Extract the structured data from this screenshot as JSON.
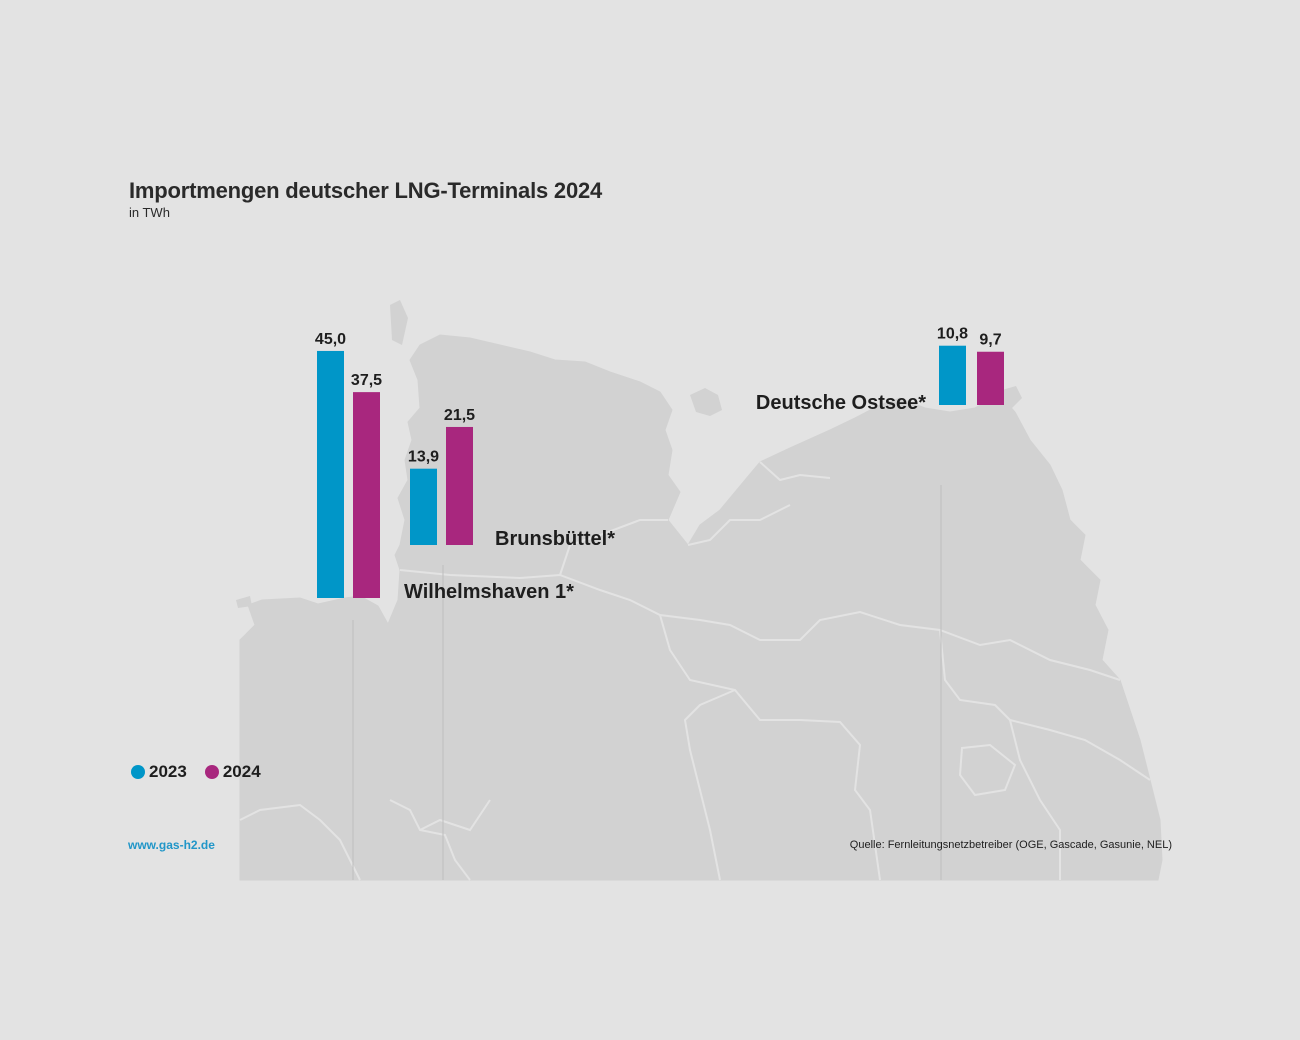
{
  "header": {
    "title": "Importmengen deutscher LNG-Terminals 2024",
    "subtitle": "in TWh"
  },
  "legend": {
    "items": [
      {
        "label": "2023",
        "color": "#0096c8"
      },
      {
        "label": "2024",
        "color": "#a8277e"
      }
    ]
  },
  "footer": {
    "url": "www.gas-h2.de",
    "source": "Quelle: Fernleitungsnetzbetreiber (OGE, Gascade, Gasunie, NEL)"
  },
  "colors": {
    "background": "#e3e3e3",
    "map_land": "#d2d2d2",
    "map_border": "#e3e3e3",
    "series_2023": "#0096c8",
    "series_2024": "#a8277e"
  },
  "chart_data": {
    "type": "bar",
    "title": "Importmengen deutscher LNG-Terminals 2024",
    "subtitle": "in TWh",
    "unit": "TWh",
    "categories": [
      "Wilhelmshaven 1*",
      "Brunsbüttel*",
      "Deutsche Ostsee*"
    ],
    "series": [
      {
        "name": "2023",
        "values": [
          45.0,
          13.9,
          10.8
        ],
        "labels": [
          "45,0",
          "13,9",
          "10,8"
        ]
      },
      {
        "name": "2024",
        "values": [
          37.5,
          21.5,
          9.7
        ],
        "labels": [
          "37,5",
          "21,5",
          "9,7"
        ]
      }
    ],
    "background": "map of northern Germany",
    "legend_position": "bottom-left"
  }
}
